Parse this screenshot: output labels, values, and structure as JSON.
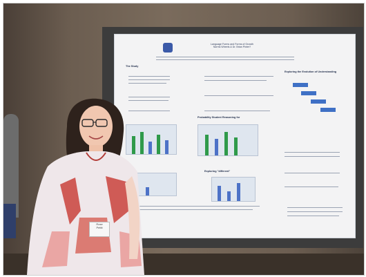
{
  "poster": {
    "title_lines": [
      "Language Forms and Forms of Growth",
      "Norms Wheels & Dr. Brian Pinter?"
    ],
    "sections": [
      "The Study",
      "Exploring the Evolution of Understanding",
      "Probability Student Reasoning for",
      "Exploring \"different\""
    ]
  },
  "badge": {
    "line1": "Rose",
    "line2": "Pettit"
  },
  "colors": {
    "poster_accent": "#3f70c5",
    "chart_green": "#2f9a4a",
    "chart_blue": "#4d72c7",
    "dress_red": "#c9423c"
  }
}
